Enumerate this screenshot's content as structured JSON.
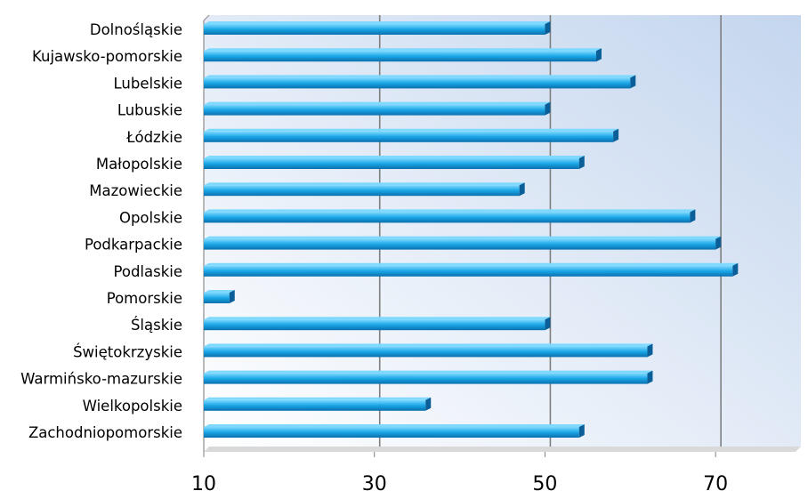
{
  "chart_data": {
    "type": "bar",
    "orientation": "horizontal",
    "categories": [
      "Dolnośląskie",
      "Kujawsko-pomorskie",
      "Lubelskie",
      "Lubuskie",
      "Łódzkie",
      "Małopolskie",
      "Mazowieckie",
      "Opolskie",
      "Podkarpackie",
      "Podlaskie",
      "Pomorskie",
      "Śląskie",
      "Świętokrzyskie",
      "Warmińsko-mazurskie",
      "Wielkopolskie",
      "Zachodniopomorskie"
    ],
    "values": [
      50,
      56,
      60,
      50,
      58,
      54,
      47,
      67,
      70,
      72,
      13,
      50,
      62,
      62,
      36,
      54
    ],
    "x_ticks": [
      "10",
      "30",
      "50",
      "70"
    ],
    "xlim": [
      10,
      80
    ],
    "title": "",
    "xlabel": "",
    "ylabel": "",
    "grid": true,
    "colors": {
      "bar_top": "#7fd9ff",
      "bar_mid": "#19a6e6",
      "bar_bottom": "#0a6fae",
      "bar_end": "#0a5f98",
      "plot_bg_left": "#ffffff",
      "plot_bg_right": "#c4d6ee",
      "gridline": "#7f7f7f",
      "text": "#000000"
    }
  }
}
